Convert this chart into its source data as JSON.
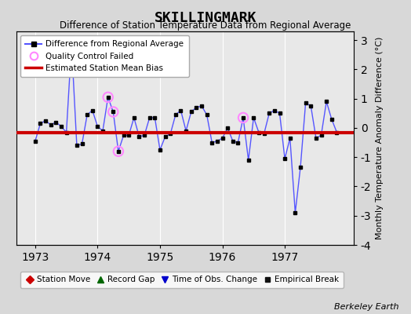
{
  "title": "SKILLINGMARK",
  "subtitle": "Difference of Station Temperature Data from Regional Average",
  "ylabel_right": "Monthly Temperature Anomaly Difference (°C)",
  "credit": "Berkeley Earth",
  "xlim": [
    1972.7,
    1978.1
  ],
  "ylim": [
    -4,
    3.3
  ],
  "yticks": [
    -4,
    -3,
    -2,
    -1,
    0,
    1,
    2,
    3
  ],
  "xticks": [
    1973,
    1974,
    1975,
    1976,
    1977
  ],
  "bias_value": -0.15,
  "bg_color": "#d8d8d8",
  "plot_bg_color": "#e8e8e8",
  "line_color": "#5555ff",
  "marker_color": "#000000",
  "bias_color": "#cc0000",
  "qc_color": "#ff88ff",
  "time_series": [
    [
      1973.0,
      -0.45
    ],
    [
      1973.083,
      0.15
    ],
    [
      1973.167,
      0.25
    ],
    [
      1973.25,
      0.1
    ],
    [
      1973.333,
      0.2
    ],
    [
      1973.417,
      0.05
    ],
    [
      1973.5,
      -0.15
    ],
    [
      1973.583,
      2.85
    ],
    [
      1973.667,
      -0.6
    ],
    [
      1973.75,
      -0.55
    ],
    [
      1973.833,
      0.45
    ],
    [
      1973.917,
      0.6
    ],
    [
      1974.0,
      0.05
    ],
    [
      1974.083,
      -0.1
    ],
    [
      1974.167,
      1.05
    ],
    [
      1974.25,
      0.55
    ],
    [
      1974.333,
      -0.8
    ],
    [
      1974.417,
      -0.25
    ],
    [
      1974.5,
      -0.25
    ],
    [
      1974.583,
      0.35
    ],
    [
      1974.667,
      -0.3
    ],
    [
      1974.75,
      -0.25
    ],
    [
      1974.833,
      0.35
    ],
    [
      1974.917,
      0.35
    ],
    [
      1975.0,
      -0.75
    ],
    [
      1975.083,
      -0.3
    ],
    [
      1975.167,
      -0.2
    ],
    [
      1975.25,
      0.45
    ],
    [
      1975.333,
      0.6
    ],
    [
      1975.417,
      -0.1
    ],
    [
      1975.5,
      0.55
    ],
    [
      1975.583,
      0.7
    ],
    [
      1975.667,
      0.75
    ],
    [
      1975.75,
      0.45
    ],
    [
      1975.833,
      -0.5
    ],
    [
      1975.917,
      -0.45
    ],
    [
      1976.0,
      -0.35
    ],
    [
      1976.083,
      0.0
    ],
    [
      1976.167,
      -0.45
    ],
    [
      1976.25,
      -0.5
    ],
    [
      1976.333,
      0.35
    ],
    [
      1976.417,
      -1.1
    ],
    [
      1976.5,
      0.35
    ],
    [
      1976.583,
      -0.15
    ],
    [
      1976.667,
      -0.2
    ],
    [
      1976.75,
      0.5
    ],
    [
      1976.833,
      0.6
    ],
    [
      1976.917,
      0.5
    ],
    [
      1977.0,
      -1.05
    ],
    [
      1977.083,
      -0.35
    ],
    [
      1977.167,
      -2.9
    ],
    [
      1977.25,
      -1.35
    ],
    [
      1977.333,
      0.85
    ],
    [
      1977.417,
      0.75
    ],
    [
      1977.5,
      -0.35
    ],
    [
      1977.583,
      -0.25
    ],
    [
      1977.667,
      0.9
    ],
    [
      1977.75,
      0.3
    ],
    [
      1977.833,
      -0.15
    ]
  ],
  "qc_failed": [
    [
      1973.583,
      2.85
    ],
    [
      1974.167,
      1.05
    ],
    [
      1974.25,
      0.55
    ],
    [
      1974.333,
      -0.8
    ],
    [
      1976.333,
      0.35
    ]
  ]
}
